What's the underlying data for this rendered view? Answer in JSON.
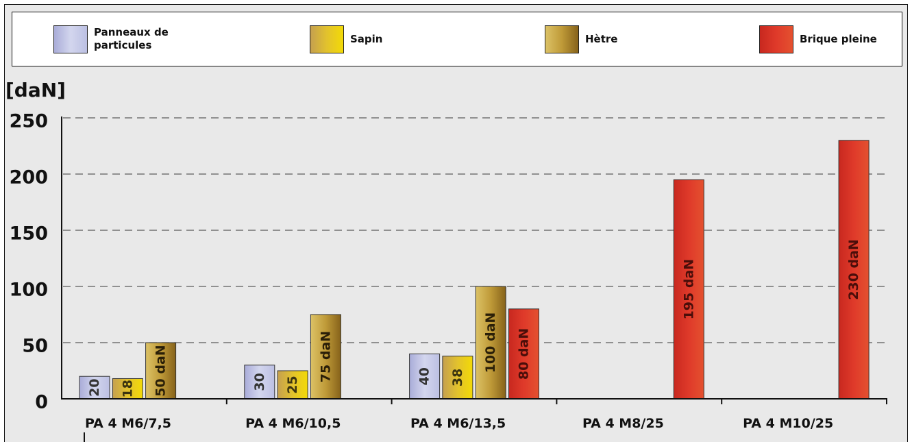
{
  "chart_data": {
    "type": "bar",
    "categories": [
      "PA 4 M6/7,5",
      "PA 4 M6/10,5",
      "PA 4 M6/13,5",
      "PA 4 M8/25",
      "PA 4 M10/25"
    ],
    "series": [
      {
        "name": "Panneaux de particules",
        "values": [
          20,
          30,
          40,
          null,
          null
        ],
        "labels": [
          "20",
          "30",
          "40",
          null,
          null
        ],
        "color": "#bfc2e4",
        "gradient": [
          "#a9acd8",
          "#d3d6ee",
          "#bcc0e3"
        ],
        "label_color": "#333333"
      },
      {
        "name": "Sapin",
        "values": [
          18,
          25,
          38,
          null,
          null
        ],
        "labels": [
          "18",
          "25",
          "38",
          null,
          null
        ],
        "color": "#e0c030",
        "gradient": [
          "#c5a04f",
          "#e2c22d",
          "#f3da06"
        ],
        "label_color": "#3b3410"
      },
      {
        "name": "Hètre",
        "values": [
          50,
          75,
          100,
          null,
          null
        ],
        "labels": [
          "50 daN",
          "75 daN",
          "100 daN",
          null,
          null
        ],
        "color": "#b8933a",
        "gradient": [
          "#dcc266",
          "#bf9a38",
          "#86621a"
        ],
        "label_color": "#2a1f08"
      },
      {
        "name": "Brique pleine",
        "values": [
          null,
          null,
          80,
          195,
          230
        ],
        "labels": [
          null,
          null,
          "80 daN",
          "195 daN",
          "230 daN"
        ],
        "color": "#d9362a",
        "gradient": [
          "#c8281f",
          "#df3a2a",
          "#e4512f"
        ],
        "label_color": "#4a0e0a"
      }
    ],
    "ylabel": "[daN]",
    "ylim": [
      0,
      250
    ],
    "yticks": [
      0,
      50,
      100,
      150,
      200,
      250
    ],
    "grid": true,
    "legend": "top"
  }
}
